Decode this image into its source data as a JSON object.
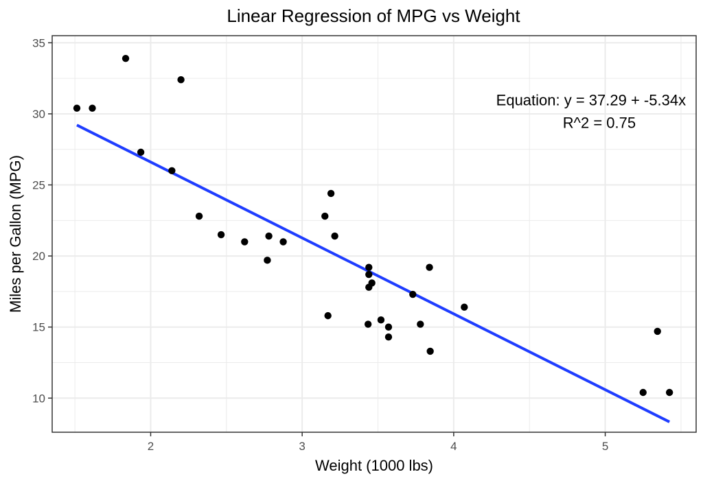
{
  "chart_data": {
    "type": "scatter",
    "title": "Linear Regression of MPG vs Weight",
    "xlabel": "Weight (1000 lbs)",
    "ylabel": "Miles per Gallon (MPG)",
    "xlim": [
      1.35,
      5.6
    ],
    "ylim": [
      7.6,
      35.5
    ],
    "x_ticks": [
      2,
      3,
      4,
      5
    ],
    "y_ticks": [
      10,
      15,
      20,
      25,
      30,
      35
    ],
    "grid": true,
    "legend": "none",
    "points": [
      {
        "x": 1.513,
        "y": 30.4
      },
      {
        "x": 1.615,
        "y": 30.4
      },
      {
        "x": 1.835,
        "y": 33.9
      },
      {
        "x": 1.935,
        "y": 27.3
      },
      {
        "x": 2.14,
        "y": 26.0
      },
      {
        "x": 2.2,
        "y": 32.4
      },
      {
        "x": 2.32,
        "y": 22.8
      },
      {
        "x": 2.465,
        "y": 21.5
      },
      {
        "x": 2.62,
        "y": 21.0
      },
      {
        "x": 2.77,
        "y": 19.7
      },
      {
        "x": 2.78,
        "y": 21.4
      },
      {
        "x": 2.875,
        "y": 21.0
      },
      {
        "x": 3.15,
        "y": 22.8
      },
      {
        "x": 3.17,
        "y": 15.8
      },
      {
        "x": 3.19,
        "y": 24.4
      },
      {
        "x": 3.215,
        "y": 21.4
      },
      {
        "x": 3.435,
        "y": 15.2
      },
      {
        "x": 3.44,
        "y": 19.2
      },
      {
        "x": 3.44,
        "y": 18.7
      },
      {
        "x": 3.44,
        "y": 17.8
      },
      {
        "x": 3.46,
        "y": 18.1
      },
      {
        "x": 3.52,
        "y": 15.5
      },
      {
        "x": 3.57,
        "y": 15.0
      },
      {
        "x": 3.57,
        "y": 14.3
      },
      {
        "x": 3.73,
        "y": 17.3
      },
      {
        "x": 3.78,
        "y": 15.2
      },
      {
        "x": 3.84,
        "y": 19.2
      },
      {
        "x": 3.845,
        "y": 13.3
      },
      {
        "x": 4.07,
        "y": 16.4
      },
      {
        "x": 5.25,
        "y": 10.4
      },
      {
        "x": 5.345,
        "y": 14.7
      },
      {
        "x": 5.424,
        "y": 10.4
      }
    ],
    "regression": {
      "intercept": 37.29,
      "slope": -5.34,
      "x_range": [
        1.513,
        5.424
      ]
    },
    "annotations": [
      {
        "name": "equation",
        "text": "Equation: y = 37.29 + -5.34x",
        "x": 4.28,
        "y": 30.6
      },
      {
        "name": "r-squared",
        "text": "R^2 = 0.75",
        "x": 4.72,
        "y": 29.0
      }
    ],
    "colors": {
      "points": "#000000",
      "line": "#1f3dff",
      "grid": "#ebebeb",
      "panel_border": "#333333",
      "axis_text": "#4d4d4d",
      "title_text": "#000000"
    }
  }
}
